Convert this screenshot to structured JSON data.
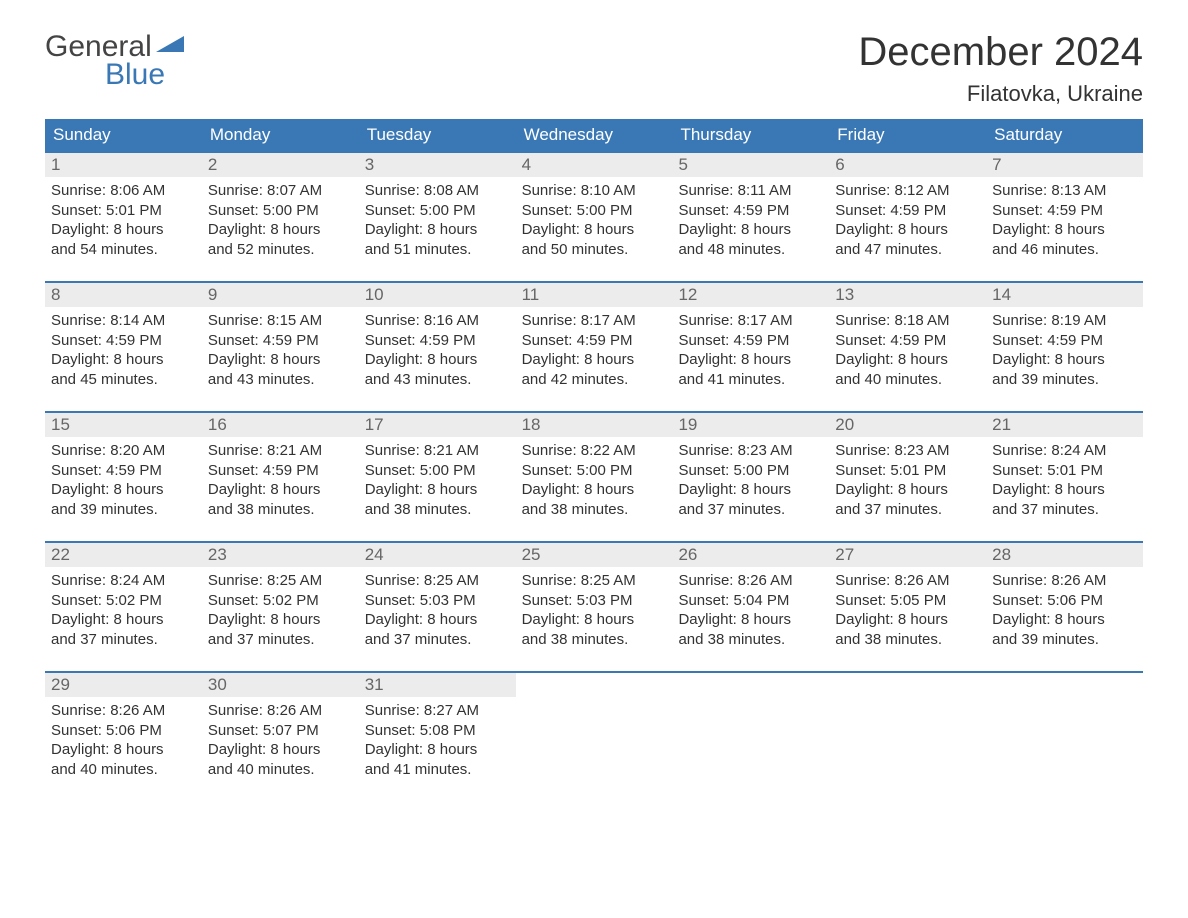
{
  "logo": {
    "line1": "General",
    "line2": "Blue"
  },
  "title": "December 2024",
  "location": "Filatovka, Ukraine",
  "colors": {
    "header_bg": "#3a78b5",
    "header_text": "#ffffff",
    "daynum_bg": "#ececec",
    "daynum_text": "#666666",
    "body_text": "#333333",
    "week_border": "#3a78b5",
    "logo_gray": "#444444",
    "logo_blue": "#3a78b5",
    "page_bg": "#ffffff"
  },
  "font": {
    "title_size": 40,
    "location_size": 22,
    "header_size": 17,
    "body_size": 15
  },
  "day_names": [
    "Sunday",
    "Monday",
    "Tuesday",
    "Wednesday",
    "Thursday",
    "Friday",
    "Saturday"
  ],
  "weeks": [
    [
      {
        "n": "1",
        "sr": "Sunrise: 8:06 AM",
        "ss": "Sunset: 5:01 PM",
        "dl1": "Daylight: 8 hours",
        "dl2": "and 54 minutes."
      },
      {
        "n": "2",
        "sr": "Sunrise: 8:07 AM",
        "ss": "Sunset: 5:00 PM",
        "dl1": "Daylight: 8 hours",
        "dl2": "and 52 minutes."
      },
      {
        "n": "3",
        "sr": "Sunrise: 8:08 AM",
        "ss": "Sunset: 5:00 PM",
        "dl1": "Daylight: 8 hours",
        "dl2": "and 51 minutes."
      },
      {
        "n": "4",
        "sr": "Sunrise: 8:10 AM",
        "ss": "Sunset: 5:00 PM",
        "dl1": "Daylight: 8 hours",
        "dl2": "and 50 minutes."
      },
      {
        "n": "5",
        "sr": "Sunrise: 8:11 AM",
        "ss": "Sunset: 4:59 PM",
        "dl1": "Daylight: 8 hours",
        "dl2": "and 48 minutes."
      },
      {
        "n": "6",
        "sr": "Sunrise: 8:12 AM",
        "ss": "Sunset: 4:59 PM",
        "dl1": "Daylight: 8 hours",
        "dl2": "and 47 minutes."
      },
      {
        "n": "7",
        "sr": "Sunrise: 8:13 AM",
        "ss": "Sunset: 4:59 PM",
        "dl1": "Daylight: 8 hours",
        "dl2": "and 46 minutes."
      }
    ],
    [
      {
        "n": "8",
        "sr": "Sunrise: 8:14 AM",
        "ss": "Sunset: 4:59 PM",
        "dl1": "Daylight: 8 hours",
        "dl2": "and 45 minutes."
      },
      {
        "n": "9",
        "sr": "Sunrise: 8:15 AM",
        "ss": "Sunset: 4:59 PM",
        "dl1": "Daylight: 8 hours",
        "dl2": "and 43 minutes."
      },
      {
        "n": "10",
        "sr": "Sunrise: 8:16 AM",
        "ss": "Sunset: 4:59 PM",
        "dl1": "Daylight: 8 hours",
        "dl2": "and 43 minutes."
      },
      {
        "n": "11",
        "sr": "Sunrise: 8:17 AM",
        "ss": "Sunset: 4:59 PM",
        "dl1": "Daylight: 8 hours",
        "dl2": "and 42 minutes."
      },
      {
        "n": "12",
        "sr": "Sunrise: 8:17 AM",
        "ss": "Sunset: 4:59 PM",
        "dl1": "Daylight: 8 hours",
        "dl2": "and 41 minutes."
      },
      {
        "n": "13",
        "sr": "Sunrise: 8:18 AM",
        "ss": "Sunset: 4:59 PM",
        "dl1": "Daylight: 8 hours",
        "dl2": "and 40 minutes."
      },
      {
        "n": "14",
        "sr": "Sunrise: 8:19 AM",
        "ss": "Sunset: 4:59 PM",
        "dl1": "Daylight: 8 hours",
        "dl2": "and 39 minutes."
      }
    ],
    [
      {
        "n": "15",
        "sr": "Sunrise: 8:20 AM",
        "ss": "Sunset: 4:59 PM",
        "dl1": "Daylight: 8 hours",
        "dl2": "and 39 minutes."
      },
      {
        "n": "16",
        "sr": "Sunrise: 8:21 AM",
        "ss": "Sunset: 4:59 PM",
        "dl1": "Daylight: 8 hours",
        "dl2": "and 38 minutes."
      },
      {
        "n": "17",
        "sr": "Sunrise: 8:21 AM",
        "ss": "Sunset: 5:00 PM",
        "dl1": "Daylight: 8 hours",
        "dl2": "and 38 minutes."
      },
      {
        "n": "18",
        "sr": "Sunrise: 8:22 AM",
        "ss": "Sunset: 5:00 PM",
        "dl1": "Daylight: 8 hours",
        "dl2": "and 38 minutes."
      },
      {
        "n": "19",
        "sr": "Sunrise: 8:23 AM",
        "ss": "Sunset: 5:00 PM",
        "dl1": "Daylight: 8 hours",
        "dl2": "and 37 minutes."
      },
      {
        "n": "20",
        "sr": "Sunrise: 8:23 AM",
        "ss": "Sunset: 5:01 PM",
        "dl1": "Daylight: 8 hours",
        "dl2": "and 37 minutes."
      },
      {
        "n": "21",
        "sr": "Sunrise: 8:24 AM",
        "ss": "Sunset: 5:01 PM",
        "dl1": "Daylight: 8 hours",
        "dl2": "and 37 minutes."
      }
    ],
    [
      {
        "n": "22",
        "sr": "Sunrise: 8:24 AM",
        "ss": "Sunset: 5:02 PM",
        "dl1": "Daylight: 8 hours",
        "dl2": "and 37 minutes."
      },
      {
        "n": "23",
        "sr": "Sunrise: 8:25 AM",
        "ss": "Sunset: 5:02 PM",
        "dl1": "Daylight: 8 hours",
        "dl2": "and 37 minutes."
      },
      {
        "n": "24",
        "sr": "Sunrise: 8:25 AM",
        "ss": "Sunset: 5:03 PM",
        "dl1": "Daylight: 8 hours",
        "dl2": "and 37 minutes."
      },
      {
        "n": "25",
        "sr": "Sunrise: 8:25 AM",
        "ss": "Sunset: 5:03 PM",
        "dl1": "Daylight: 8 hours",
        "dl2": "and 38 minutes."
      },
      {
        "n": "26",
        "sr": "Sunrise: 8:26 AM",
        "ss": "Sunset: 5:04 PM",
        "dl1": "Daylight: 8 hours",
        "dl2": "and 38 minutes."
      },
      {
        "n": "27",
        "sr": "Sunrise: 8:26 AM",
        "ss": "Sunset: 5:05 PM",
        "dl1": "Daylight: 8 hours",
        "dl2": "and 38 minutes."
      },
      {
        "n": "28",
        "sr": "Sunrise: 8:26 AM",
        "ss": "Sunset: 5:06 PM",
        "dl1": "Daylight: 8 hours",
        "dl2": "and 39 minutes."
      }
    ],
    [
      {
        "n": "29",
        "sr": "Sunrise: 8:26 AM",
        "ss": "Sunset: 5:06 PM",
        "dl1": "Daylight: 8 hours",
        "dl2": "and 40 minutes."
      },
      {
        "n": "30",
        "sr": "Sunrise: 8:26 AM",
        "ss": "Sunset: 5:07 PM",
        "dl1": "Daylight: 8 hours",
        "dl2": "and 40 minutes."
      },
      {
        "n": "31",
        "sr": "Sunrise: 8:27 AM",
        "ss": "Sunset: 5:08 PM",
        "dl1": "Daylight: 8 hours",
        "dl2": "and 41 minutes."
      },
      null,
      null,
      null,
      null
    ]
  ]
}
